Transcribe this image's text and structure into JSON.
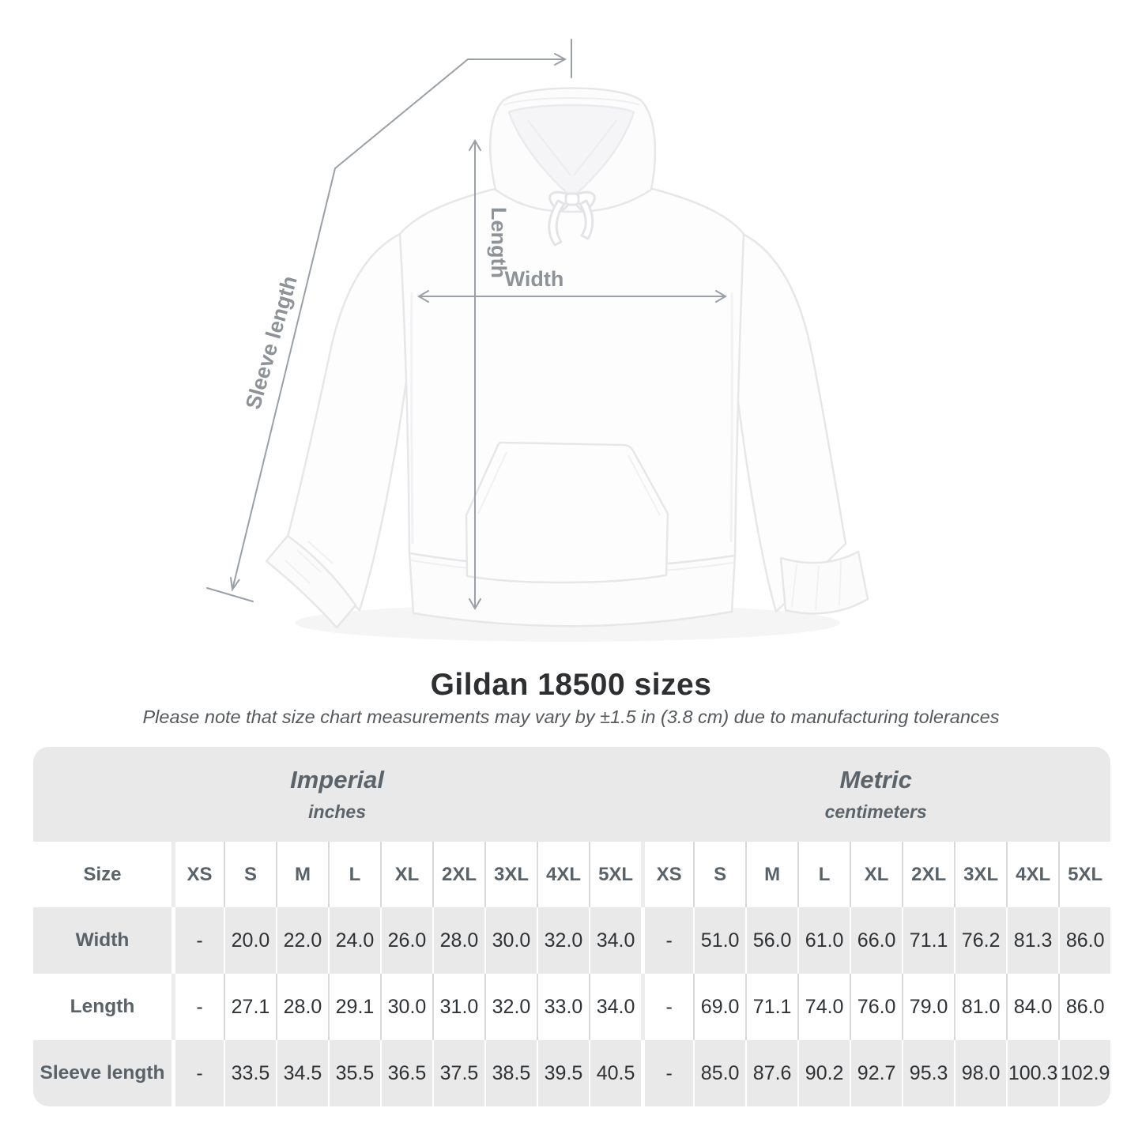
{
  "title": "Gildan 18500 sizes",
  "subtitle": "Please note that size chart measurements may vary by ±1.5 in (3.8 cm) due to manufacturing tolerances",
  "diagram": {
    "labels": {
      "length": "Length",
      "width": "Width",
      "sleeve": "Sleeve length"
    }
  },
  "table": {
    "size_header": "Size",
    "sections": [
      {
        "name": "Imperial",
        "unit": "inches"
      },
      {
        "name": "Metric",
        "unit": "centimeters"
      }
    ],
    "columns": [
      "XS",
      "S",
      "M",
      "L",
      "XL",
      "2XL",
      "3XL",
      "4XL",
      "5XL"
    ],
    "rows": [
      {
        "label": "Width",
        "imperial": [
          "-",
          "20.0",
          "22.0",
          "24.0",
          "26.0",
          "28.0",
          "30.0",
          "32.0",
          "34.0"
        ],
        "metric": [
          "-",
          "51.0",
          "56.0",
          "61.0",
          "66.0",
          "71.1",
          "76.2",
          "81.3",
          "86.0"
        ]
      },
      {
        "label": "Length",
        "imperial": [
          "-",
          "27.1",
          "28.0",
          "29.1",
          "30.0",
          "31.0",
          "32.0",
          "33.0",
          "34.0"
        ],
        "metric": [
          "-",
          "69.0",
          "71.1",
          "74.0",
          "76.0",
          "79.0",
          "81.0",
          "84.0",
          "86.0"
        ]
      },
      {
        "label": "Sleeve length",
        "imperial": [
          "-",
          "33.5",
          "34.5",
          "35.5",
          "36.5",
          "37.5",
          "38.5",
          "39.5",
          "40.5"
        ],
        "metric": [
          "-",
          "85.0",
          "87.6",
          "90.2",
          "92.7",
          "95.3",
          "98.0",
          "100.3",
          "102.9"
        ]
      }
    ]
  },
  "chart_data": {
    "type": "table",
    "title": "Gildan 18500 sizes",
    "subtitle": "Please note that size chart measurements may vary by ±1.5 in (3.8 cm) due to manufacturing tolerances",
    "column_groups": [
      {
        "name": "Imperial",
        "unit": "inches",
        "columns": [
          "XS",
          "S",
          "M",
          "L",
          "XL",
          "2XL",
          "3XL",
          "4XL",
          "5XL"
        ]
      },
      {
        "name": "Metric",
        "unit": "centimeters",
        "columns": [
          "XS",
          "S",
          "M",
          "L",
          "XL",
          "2XL",
          "3XL",
          "4XL",
          "5XL"
        ]
      }
    ],
    "rows": [
      {
        "measurement": "Width",
        "imperial_in": [
          null,
          20.0,
          22.0,
          24.0,
          26.0,
          28.0,
          30.0,
          32.0,
          34.0
        ],
        "metric_cm": [
          null,
          51.0,
          56.0,
          61.0,
          66.0,
          71.1,
          76.2,
          81.3,
          86.0
        ]
      },
      {
        "measurement": "Length",
        "imperial_in": [
          null,
          27.1,
          28.0,
          29.1,
          30.0,
          31.0,
          32.0,
          33.0,
          34.0
        ],
        "metric_cm": [
          null,
          69.0,
          71.1,
          74.0,
          76.0,
          79.0,
          81.0,
          84.0,
          86.0
        ]
      },
      {
        "measurement": "Sleeve length",
        "imperial_in": [
          null,
          33.5,
          34.5,
          35.5,
          36.5,
          37.5,
          38.5,
          39.5,
          40.5
        ],
        "metric_cm": [
          null,
          85.0,
          87.6,
          90.2,
          92.7,
          95.3,
          98.0,
          100.3,
          102.9
        ]
      }
    ]
  },
  "colors": {
    "band_gray": "#e9e9ea",
    "label_text": "#596268",
    "value_text": "#2f3235",
    "annotation_line": "#9aa0a5",
    "annotation_text": "#8d9398",
    "title_text": "#2d2f31",
    "subtitle_text": "#55595c"
  }
}
